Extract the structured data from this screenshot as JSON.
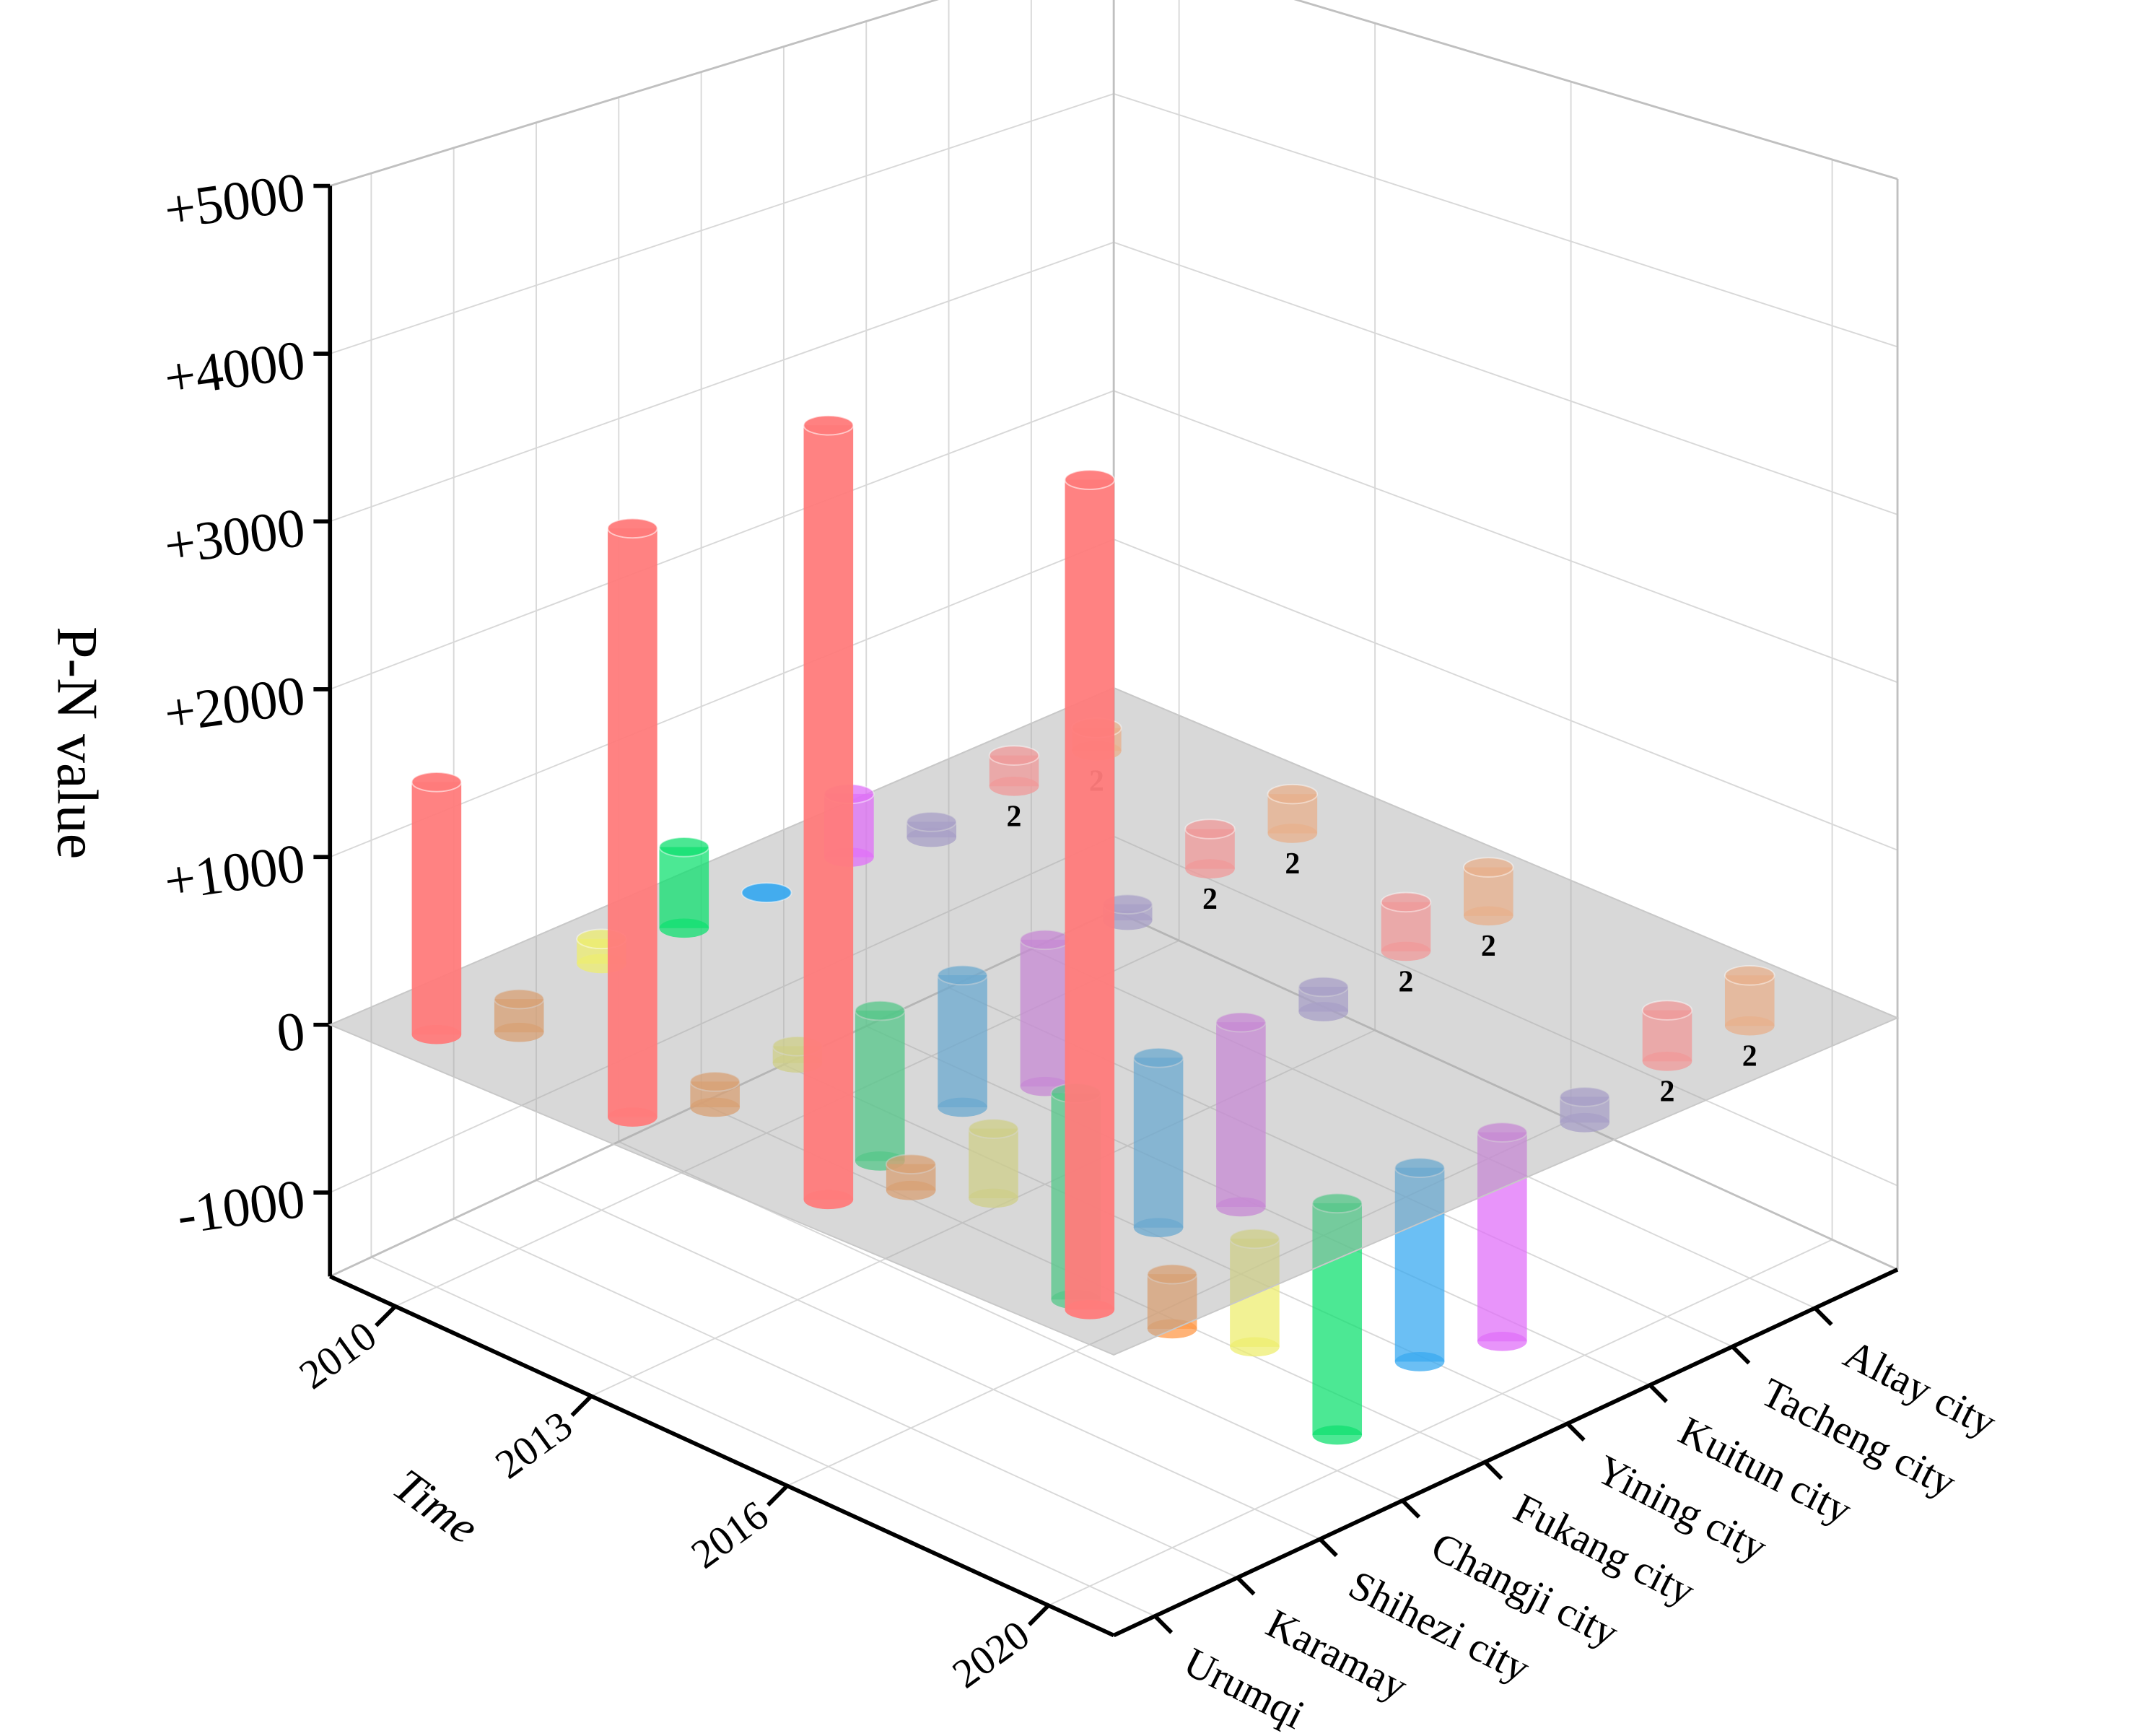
{
  "chart_data": {
    "type": "bar3d",
    "x_label": "Time",
    "y_label": "P-N value",
    "x": [
      2010,
      2013,
      2016,
      2020
    ],
    "xlim": [
      2009,
      2021
    ],
    "xticks": [
      2010,
      2013,
      2016,
      2020
    ],
    "ylim": [
      -1500,
      5000
    ],
    "yticks": [
      {
        "value": 5000,
        "label": "+5000"
      },
      {
        "value": 4000,
        "label": "+4000"
      },
      {
        "value": 3000,
        "label": "+3000"
      },
      {
        "value": 2000,
        "label": "+2000"
      },
      {
        "value": 1000,
        "label": "+1000"
      },
      0,
      -1000
    ],
    "grid": true,
    "series": [
      {
        "name": "Urumqi",
        "color": "#ff7b7b",
        "values": [
          1500,
          3400,
          4350,
          4500
        ]
      },
      {
        "name": "Karamay",
        "color": "#ff9a4a",
        "values": [
          -200,
          -150,
          -150,
          -300
        ]
      },
      {
        "name": "Shihezi city",
        "color": "#eeee70",
        "values": [
          150,
          -100,
          -400,
          -600
        ]
      },
      {
        "name": "Changji city",
        "color": "#10e070",
        "values": [
          500,
          -900,
          -1200,
          -1300
        ]
      },
      {
        "name": "Fukang city",
        "color": "#3aaaf0",
        "values": [
          0,
          -800,
          -1000,
          -1100
        ]
      },
      {
        "name": "Yining city",
        "color": "#e070f8",
        "values": [
          400,
          -900,
          -1100,
          -1200
        ]
      },
      {
        "name": "Kuitun city",
        "color": "#a898e0",
        "values": [
          -100,
          -100,
          -150,
          -150
        ]
      },
      {
        "name": "Tacheng city",
        "color": "#f09a9a",
        "values": [
          200,
          250,
          300,
          300
        ],
        "point_labels": [
          "2",
          "2",
          "2",
          "2"
        ]
      },
      {
        "name": "Altay city",
        "color": "#e8b08c",
        "values": [
          150,
          250,
          300,
          300
        ],
        "point_labels": [
          "2",
          "2",
          "2",
          "2"
        ]
      }
    ]
  }
}
